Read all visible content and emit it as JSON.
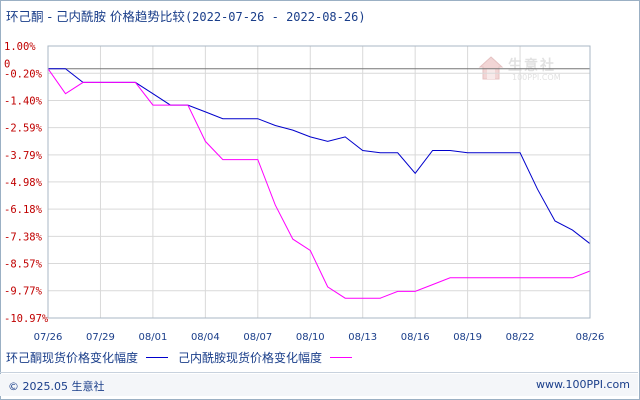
{
  "header": {
    "title": "环己酮 - 己内酰胺 价格趋势比较",
    "date_range": "(2022-07-26 - 2022-08-26)"
  },
  "watermark": {
    "text": "生意社",
    "url": "100PPI.COM"
  },
  "footer": {
    "copyright": "© 2025.05 生意社",
    "url": "www.100PPI.com"
  },
  "colors": {
    "series1": "#0000cc",
    "series2": "#ff00ff",
    "tick_label_y": "#c00000",
    "grid": "#d9d9d9",
    "zero_line": "#777777"
  },
  "chart_data": {
    "type": "line",
    "ylim": [
      -10.97,
      1.0
    ],
    "yticks": [
      1.0,
      -0.2,
      -1.4,
      -2.59,
      -3.79,
      -4.98,
      -6.18,
      -7.38,
      -8.57,
      -9.77,
      -10.97
    ],
    "ytick_labels": [
      "1.00%",
      "-0.20%",
      "-1.40%",
      "-2.59%",
      "-3.79%",
      "-4.98%",
      "-6.18%",
      "-7.38%",
      "-8.57%",
      "-9.77%",
      "-10.97%"
    ],
    "zero_label": "0",
    "grid": true,
    "x": [
      "07/26",
      "07/27",
      "07/28",
      "07/29",
      "07/30",
      "07/31",
      "08/01",
      "08/02",
      "08/03",
      "08/04",
      "08/05",
      "08/06",
      "08/07",
      "08/08",
      "08/09",
      "08/10",
      "08/11",
      "08/12",
      "08/13",
      "08/14",
      "08/15",
      "08/16",
      "08/17",
      "08/18",
      "08/19",
      "08/20",
      "08/21",
      "08/22",
      "08/23",
      "08/24",
      "08/25",
      "08/26"
    ],
    "xtick_labels": [
      "07/26",
      "07/29",
      "08/01",
      "08/04",
      "08/07",
      "08/10",
      "08/13",
      "08/16",
      "08/19",
      "08/22",
      "08/26"
    ],
    "xtick_index": [
      0,
      3,
      6,
      9,
      12,
      15,
      18,
      21,
      24,
      27,
      31
    ],
    "series": [
      {
        "name": "环己酮现货价格变化幅度",
        "values": [
          0.0,
          0.0,
          -0.6,
          -0.6,
          -0.6,
          -0.6,
          -1.1,
          -1.6,
          -1.6,
          -1.9,
          -2.2,
          -2.2,
          -2.2,
          -2.5,
          -2.7,
          -3.0,
          -3.2,
          -3.0,
          -3.6,
          -3.7,
          -3.7,
          -4.6,
          -3.6,
          -3.6,
          -3.7,
          -3.7,
          -3.7,
          -3.7,
          -5.3,
          -6.7,
          -7.1,
          -7.7
        ]
      },
      {
        "name": "己内酰胺现货价格变化幅度",
        "values": [
          0.0,
          -1.1,
          -0.6,
          -0.6,
          -0.6,
          -0.6,
          -1.6,
          -1.6,
          -1.6,
          -3.2,
          -4.0,
          -4.0,
          -4.0,
          -6.0,
          -7.5,
          -8.0,
          -9.6,
          -10.1,
          -10.1,
          -10.1,
          -9.8,
          -9.8,
          -9.5,
          -9.2,
          -9.2,
          -9.2,
          -9.2,
          -9.2,
          -9.2,
          -9.2,
          -9.2,
          -8.9
        ]
      }
    ]
  }
}
